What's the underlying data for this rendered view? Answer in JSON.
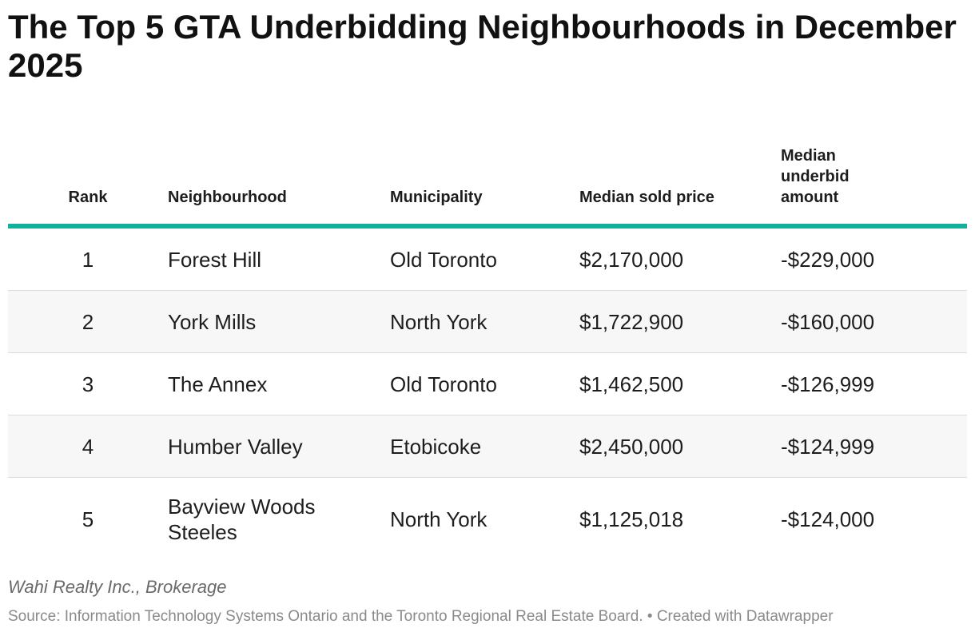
{
  "chart_data": {
    "type": "table",
    "title": "The Top 5 GTA Underbidding Neighbourhoods in December 2025",
    "columns": [
      "Rank",
      "Neighbourhood",
      "Municipality",
      "Median sold price",
      "Median underbid amount"
    ],
    "rows": [
      [
        "1",
        "Forest Hill",
        "Old Toronto",
        "$2,170,000",
        "-$229,000"
      ],
      [
        "2",
        "York Mills",
        "North York",
        "$1,722,900",
        "-$160,000"
      ],
      [
        "3",
        "The Annex",
        "Old Toronto",
        "$1,462,500",
        "-$126,999"
      ],
      [
        "4",
        "Humber Valley",
        "Etobicoke",
        "$2,450,000",
        "-$124,999"
      ],
      [
        "5",
        "Bayview Woods Steeles",
        "North York",
        "$1,125,018",
        "-$124,000"
      ]
    ],
    "header_rule_color": "#14b19a",
    "banded_row_color": "#f7f7f7"
  },
  "footer": {
    "brokerage": "Wahi Realty Inc., Brokerage",
    "source": "Source: Information Technology Systems Ontario and the Toronto Regional Real Estate Board.",
    "separator": " • ",
    "credit": "Created with Datawrapper"
  }
}
